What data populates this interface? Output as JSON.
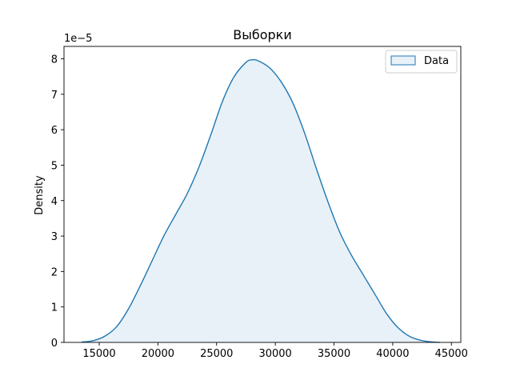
{
  "chart_data": {
    "type": "area",
    "title": "Выборки",
    "xlabel": "",
    "ylabel": "Density",
    "y_offset_label": "1e−5",
    "y_scale_factor": 1e-05,
    "xlim": [
      12000,
      45800
    ],
    "ylim": [
      0,
      8.35
    ],
    "x_ticks": [
      15000,
      20000,
      25000,
      30000,
      35000,
      40000,
      45000
    ],
    "y_ticks": [
      0,
      1,
      2,
      3,
      4,
      5,
      6,
      7,
      8
    ],
    "grid": false,
    "legend_position": "top-right",
    "colors": {
      "line": "#1f77b4",
      "fill": "#1f77b4",
      "fill_opacity": 0.1
    },
    "series": [
      {
        "name": "Data",
        "x": [
          13500,
          14500,
          15500,
          16500,
          17500,
          18500,
          19500,
          20500,
          21500,
          22500,
          23500,
          24500,
          25500,
          26500,
          27500,
          28000,
          28500,
          29500,
          30500,
          31500,
          32500,
          33500,
          34500,
          35500,
          36500,
          37500,
          38500,
          39500,
          40500,
          41500,
          42500,
          43500,
          44000
        ],
        "y": [
          0.01,
          0.05,
          0.18,
          0.45,
          0.95,
          1.6,
          2.3,
          3.0,
          3.6,
          4.2,
          4.95,
          5.85,
          6.8,
          7.5,
          7.9,
          7.97,
          7.95,
          7.75,
          7.35,
          6.75,
          5.9,
          4.9,
          3.95,
          3.1,
          2.45,
          1.9,
          1.35,
          0.8,
          0.4,
          0.16,
          0.05,
          0.01,
          0.0
        ]
      }
    ]
  }
}
